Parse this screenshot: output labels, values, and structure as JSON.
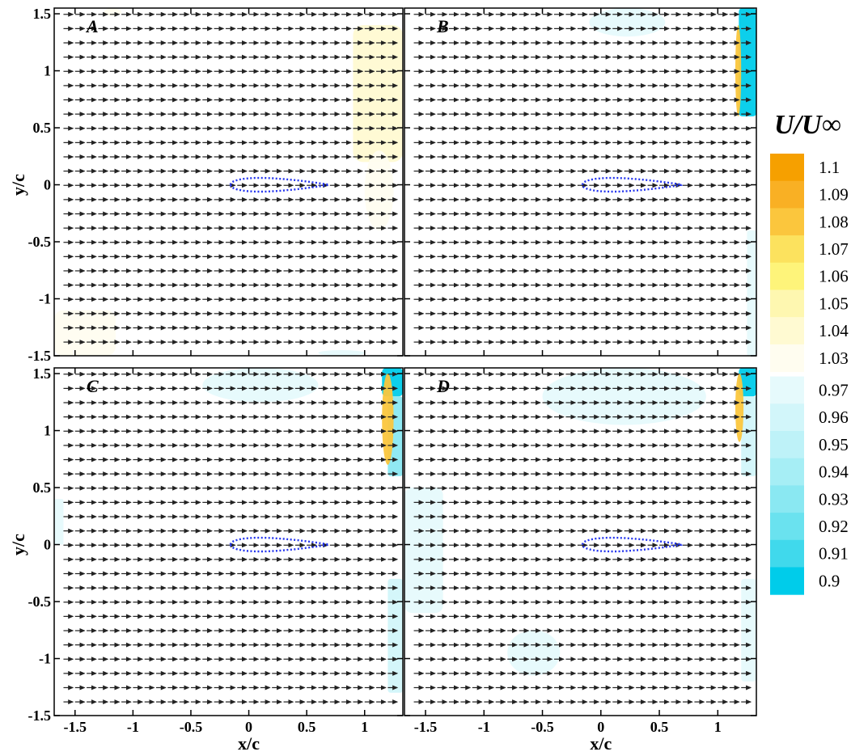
{
  "chart_data": {
    "type": "heatmap",
    "panels": [
      {
        "label": "A",
        "max_marker_color": "#fff8d6",
        "patches": [
          {
            "kind": "high",
            "level": 1.04,
            "x": [
              0.9,
              1.33
            ],
            "y": [
              0.2,
              1.4
            ]
          },
          {
            "kind": "high",
            "level": 1.03,
            "x": [
              1.0,
              1.25
            ],
            "y": [
              -0.4,
              0.3
            ]
          },
          {
            "kind": "high",
            "level": 1.03,
            "x": [
              -1.68,
              -1.15
            ],
            "y": [
              -1.5,
              -1.1
            ]
          },
          {
            "kind": "high",
            "level": 1.03,
            "x": [
              -1.25,
              -1.1
            ],
            "y": [
              1.48,
              1.55
            ]
          },
          {
            "kind": "low",
            "level": 0.97,
            "x": [
              0.6,
              1.0
            ],
            "y": [
              -1.5,
              -1.45
            ]
          }
        ]
      },
      {
        "label": "B",
        "patches": [
          {
            "kind": "low",
            "level": 0.97,
            "x": [
              -0.1,
              0.55
            ],
            "y": [
              1.3,
              1.55
            ]
          },
          {
            "kind": "low",
            "level": 0.9,
            "x": [
              1.18,
              1.33
            ],
            "y": [
              0.6,
              1.55
            ]
          },
          {
            "kind": "high",
            "level": 1.08,
            "x": [
              1.15,
              1.2
            ],
            "y": [
              0.6,
              1.4
            ]
          },
          {
            "kind": "low",
            "level": 0.97,
            "x": [
              1.25,
              1.33
            ],
            "y": [
              -1.5,
              -0.4
            ]
          }
        ]
      },
      {
        "label": "C",
        "patches": [
          {
            "kind": "low",
            "level": 0.97,
            "x": [
              -0.4,
              0.6
            ],
            "y": [
              1.25,
              1.55
            ]
          },
          {
            "kind": "low",
            "level": 0.9,
            "x": [
              1.15,
              1.33
            ],
            "y": [
              1.3,
              1.55
            ]
          },
          {
            "kind": "low",
            "level": 0.93,
            "x": [
              1.2,
              1.33
            ],
            "y": [
              0.6,
              1.3
            ]
          },
          {
            "kind": "high",
            "level": 1.08,
            "x": [
              1.15,
              1.25
            ],
            "y": [
              0.7,
              1.5
            ]
          },
          {
            "kind": "low",
            "level": 0.96,
            "x": [
              1.2,
              1.33
            ],
            "y": [
              -1.3,
              -0.3
            ]
          },
          {
            "kind": "low",
            "level": 0.97,
            "x": [
              -1.68,
              -1.6
            ],
            "y": [
              0.0,
              0.4
            ]
          }
        ]
      },
      {
        "label": "D",
        "patches": [
          {
            "kind": "low",
            "level": 0.97,
            "x": [
              -0.5,
              0.9
            ],
            "y": [
              1.05,
              1.55
            ]
          },
          {
            "kind": "low",
            "level": 0.9,
            "x": [
              1.18,
              1.33
            ],
            "y": [
              1.3,
              1.55
            ]
          },
          {
            "kind": "low",
            "level": 0.96,
            "x": [
              1.2,
              1.33
            ],
            "y": [
              0.6,
              1.3
            ]
          },
          {
            "kind": "high",
            "level": 1.08,
            "x": [
              1.15,
              1.22
            ],
            "y": [
              0.9,
              1.5
            ]
          },
          {
            "kind": "low",
            "level": 0.97,
            "x": [
              -1.68,
              -1.35
            ],
            "y": [
              -0.6,
              0.5
            ]
          },
          {
            "kind": "low",
            "level": 0.97,
            "x": [
              -0.8,
              -0.35
            ],
            "y": [
              -1.15,
              -0.75
            ]
          },
          {
            "kind": "low",
            "level": 0.97,
            "x": [
              1.2,
              1.33
            ],
            "y": [
              -1.2,
              -0.3
            ]
          }
        ]
      }
    ],
    "xlabel": "x/c",
    "ylabel": "y/c",
    "xlim": [
      -1.68,
      1.33
    ],
    "ylim": [
      -1.5,
      1.55
    ],
    "xticks": [
      -1.5,
      -1,
      -0.5,
      0,
      0.5,
      1
    ],
    "xtick_labels": [
      "-1.5",
      "-1",
      "-0.5",
      "0",
      "0.5",
      "1"
    ],
    "yticks": [
      -1.5,
      -1,
      -0.5,
      0,
      0.5,
      1,
      1.5
    ],
    "ytick_labels": [
      "-1.5",
      "-1",
      "-0.5",
      "0",
      "0.5",
      "1",
      "1.5"
    ],
    "vectors": {
      "x_start": -1.6,
      "x_step": 0.1,
      "count_x": 29,
      "y_start": -1.38,
      "y_step": 0.125,
      "count_y": 24,
      "length": 0.082,
      "color": "#222222"
    },
    "airfoil": {
      "x_le": -0.16,
      "x_te": 0.69,
      "thickness": 0.12,
      "color": "#2233ee"
    },
    "colorbar": {
      "title": "U/U∞",
      "levels": [
        {
          "value": "1.1",
          "color": "#f6a000"
        },
        {
          "value": "1.09",
          "color": "#f9b024"
        },
        {
          "value": "1.08",
          "color": "#fbc63d"
        },
        {
          "value": "1.07",
          "color": "#fce25e"
        },
        {
          "value": "1.06",
          "color": "#fef47a"
        },
        {
          "value": "1.05",
          "color": "#fef7b0"
        },
        {
          "value": "1.04",
          "color": "#fffad2"
        },
        {
          "value": "1.03",
          "color": "#fffdf0"
        },
        {
          "value": "0.97",
          "color": "#e6fafc"
        },
        {
          "value": "0.96",
          "color": "#d2f6fa"
        },
        {
          "value": "0.95",
          "color": "#bef2f8"
        },
        {
          "value": "0.94",
          "color": "#a6eef5"
        },
        {
          "value": "0.93",
          "color": "#8ae8f2"
        },
        {
          "value": "0.92",
          "color": "#6ae2ef"
        },
        {
          "value": "0.91",
          "color": "#40d9ec"
        },
        {
          "value": "0.9",
          "color": "#00ccea"
        }
      ]
    }
  }
}
